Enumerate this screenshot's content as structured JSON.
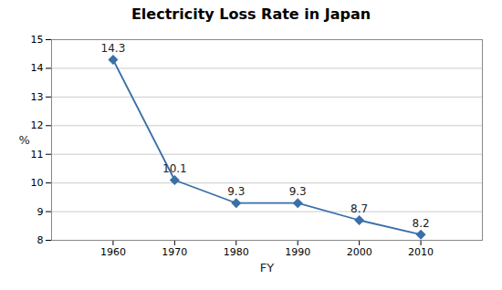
{
  "chart_data": {
    "type": "line",
    "title": "Electricity Loss Rate in Japan",
    "xlabel": "FY",
    "ylabel": "%",
    "x": [
      1960,
      1970,
      1980,
      1990,
      2000,
      2010
    ],
    "values": [
      14.3,
      10.1,
      9.3,
      9.3,
      8.7,
      8.2
    ],
    "color": "#3a6fa8",
    "marker": "diamond",
    "xlim": [
      1950,
      2020
    ],
    "xticks": [
      1960,
      1970,
      1980,
      1990,
      2000,
      2010
    ],
    "ylim": [
      8,
      15
    ],
    "yticks": [
      8,
      9,
      10,
      11,
      12,
      13,
      14,
      15
    ],
    "grid": true,
    "data_labels": true
  }
}
